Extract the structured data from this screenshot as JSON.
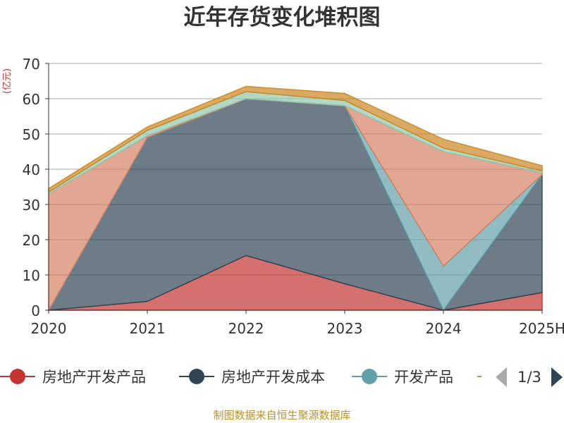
{
  "chart_data": {
    "type": "area",
    "stacked": true,
    "title": "近年存货变化堆积图",
    "ylabel": "(亿元)",
    "categories": [
      "2020",
      "2021",
      "2022",
      "2023",
      "2024",
      "2025H"
    ],
    "ylim": [
      0,
      70
    ],
    "yticks": [
      0,
      10,
      20,
      30,
      40,
      50,
      60,
      70
    ],
    "grid": true,
    "series": [
      {
        "name": "房地产开发产品",
        "color": "#c23531",
        "values": [
          0,
          2.5,
          15.5,
          7.5,
          0,
          5
        ]
      },
      {
        "name": "房地产开发成本",
        "color": "#2f4554",
        "values": [
          0,
          46.5,
          44.5,
          50.5,
          0,
          33.5
        ]
      },
      {
        "name": "开发产品",
        "color": "#61a0a8",
        "values": [
          0,
          0,
          0,
          0,
          12.5,
          0
        ]
      },
      {
        "name": "",
        "color": "#d48265",
        "values": [
          33,
          0.5,
          0,
          0,
          32.5,
          0.5
        ]
      },
      {
        "name": "",
        "color": "#91c7ae",
        "values": [
          0.5,
          1.5,
          2,
          1.5,
          1,
          0.5
        ]
      },
      {
        "name": "",
        "color": "#ca8622",
        "values": [
          1,
          1,
          1.5,
          2,
          2.5,
          1.5
        ]
      }
    ]
  },
  "legend": {
    "visible": [
      "房地产开发产品",
      "房地产开发成本",
      "开发产品"
    ],
    "page": "1/3"
  },
  "footer": {
    "source": "制图数据来自恒生聚源数据库"
  },
  "colors": {
    "axis": "#333333",
    "grid": "#aaaaaa",
    "ylabel": "#c23531",
    "pager_disabled": "#aaaaaa",
    "pager_active": "#2f4554"
  }
}
